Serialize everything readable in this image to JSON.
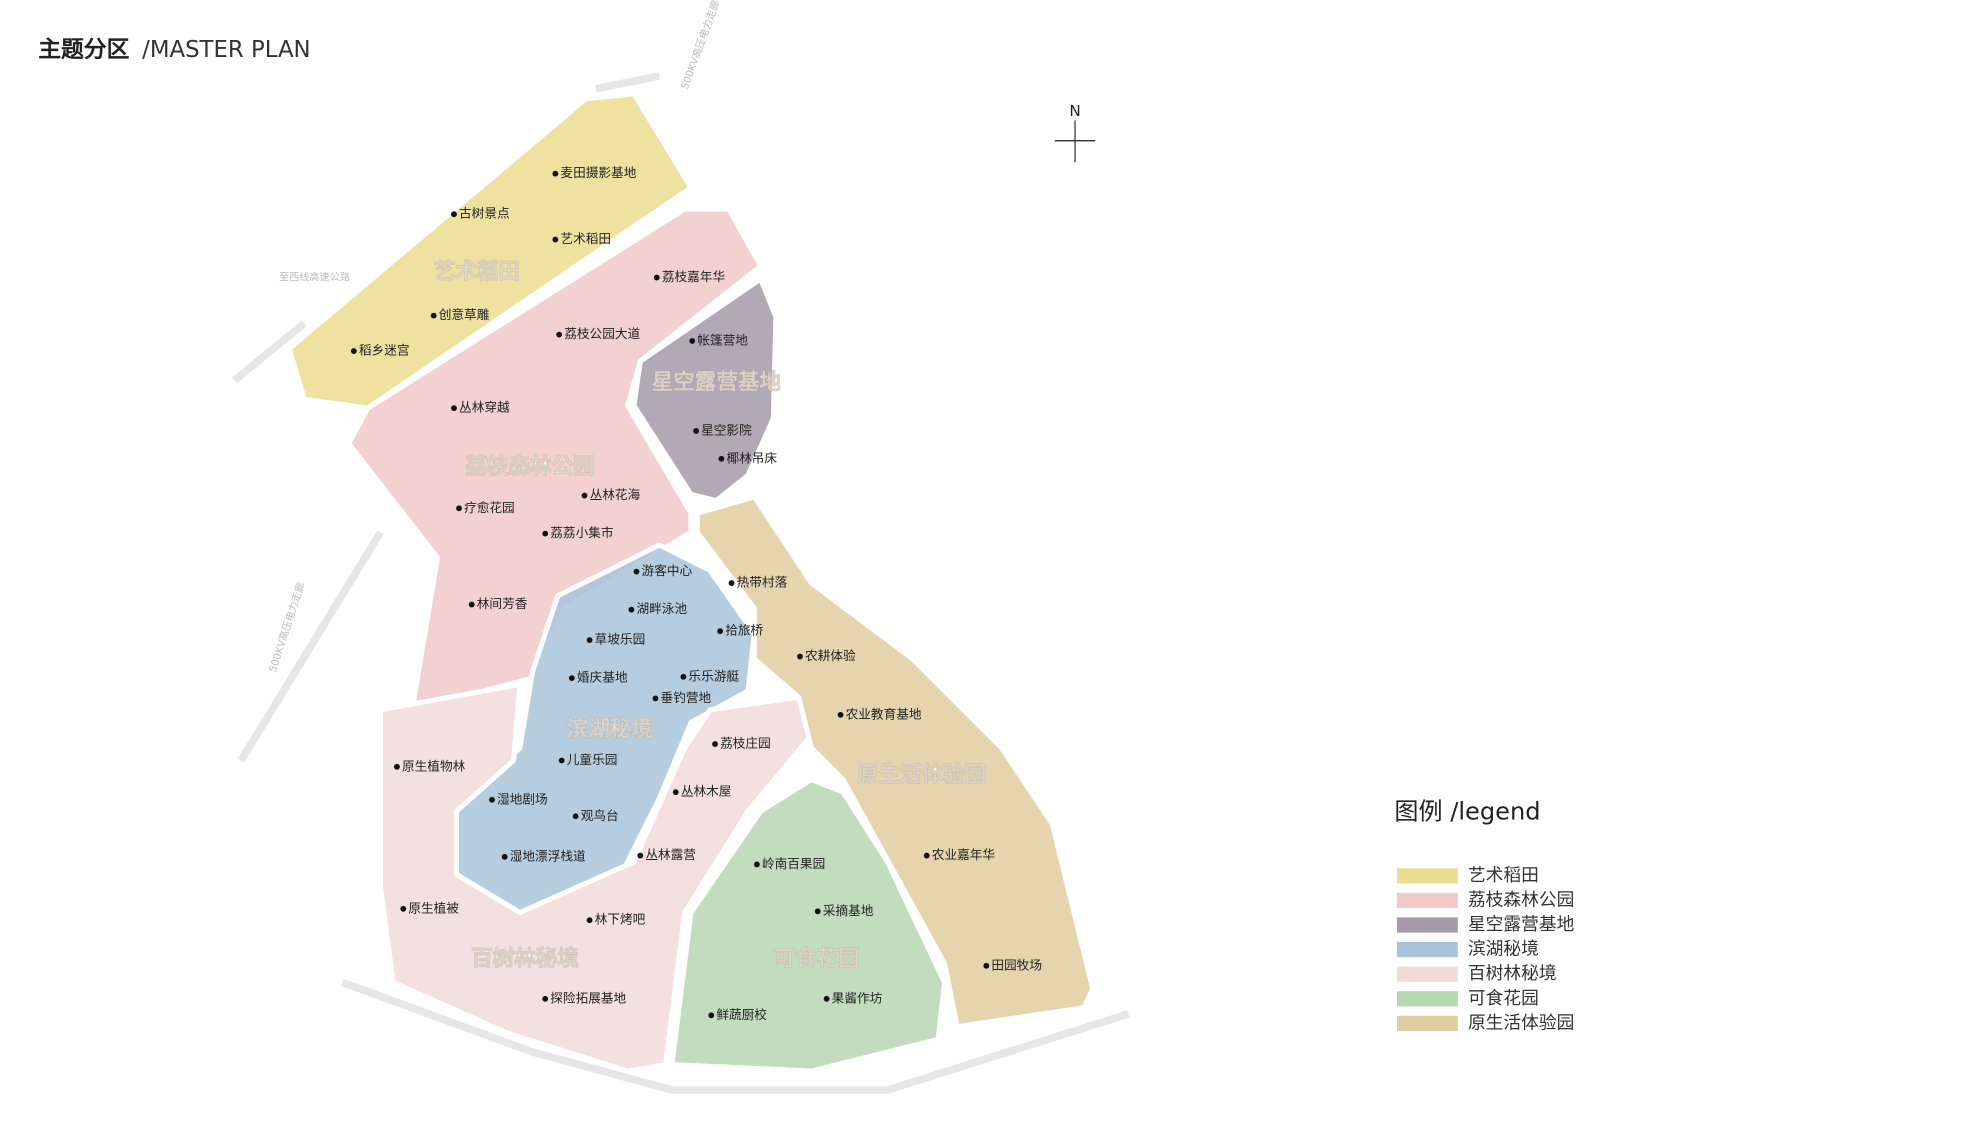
{
  "header": {
    "title": "主题分区",
    "subtitle": "/MASTER PLAN"
  },
  "compass": {
    "label": "N"
  },
  "roads": [
    "500KV高压电力走廊",
    "至西线高速公路",
    "500KV高压电力走廊"
  ],
  "zones": [
    "艺术稻田",
    "荔枝森林公园",
    "星空露营基地",
    "滨湖秘境",
    "百树林秘境",
    "可食花园",
    "原生活体验园"
  ],
  "points": [
    "麦田摄影基地",
    "古树景点",
    "艺术稻田",
    "创意草雕",
    "稻乡迷宫",
    "荔枝嘉年华",
    "荔枝公园大道",
    "帐篷营地",
    "丛林穿越",
    "星空影院",
    "椰林吊床",
    "丛林花海",
    "疗愈花园",
    "荔荔小集市",
    "游客中心",
    "热带村落",
    "林间芳香",
    "湖畔泳池",
    "拾旅桥",
    "草坡乐园",
    "农耕体验",
    "婚庆基地",
    "乐乐游艇",
    "垂钓营地",
    "农业教育基地",
    "荔枝庄园",
    "原生植物林",
    "儿童乐园",
    "丛林木屋",
    "湿地剧场",
    "观鸟台",
    "丛林露营",
    "湿地漂浮栈道",
    "岭南百果园",
    "农业嘉年华",
    "原生植被",
    "林下烤吧",
    "采摘基地",
    "田园牧场",
    "探险拓展基地",
    "果酱作坊",
    "鲜蔬厨校"
  ],
  "legend": {
    "title": "图例 /legend",
    "items": [
      {
        "label": "艺术稻田",
        "color": "#ecdc8f"
      },
      {
        "label": "荔枝森林公园",
        "color": "#f2c9c9"
      },
      {
        "label": "星空露营基地",
        "color": "#a59aaa"
      },
      {
        "label": "滨湖秘境",
        "color": "#a9c4d9"
      },
      {
        "label": "百树林秘境",
        "color": "#f2dada"
      },
      {
        "label": "可食花园",
        "color": "#b7d7b2"
      },
      {
        "label": "原生活体验园",
        "color": "#e0cda0"
      }
    ]
  }
}
